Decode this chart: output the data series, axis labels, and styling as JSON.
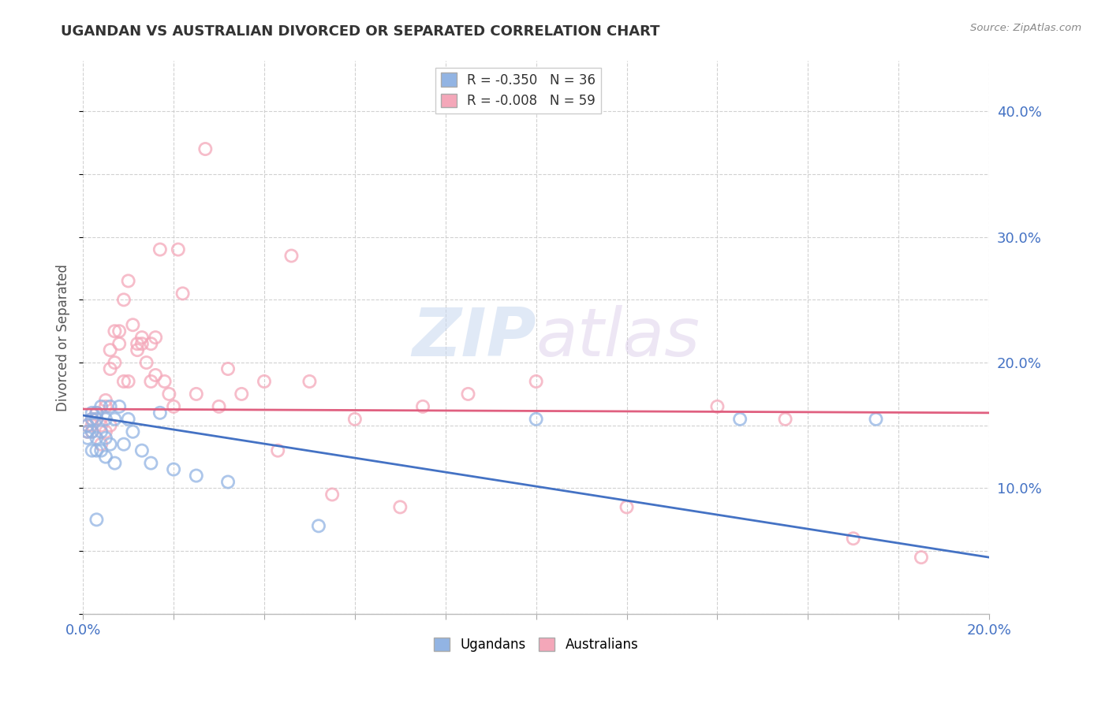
{
  "title": "UGANDAN VS AUSTRALIAN DIVORCED OR SEPARATED CORRELATION CHART",
  "source": "Source: ZipAtlas.com",
  "ylabel": "Divorced or Separated",
  "xlim": [
    0.0,
    0.2
  ],
  "ylim": [
    0.0,
    0.44
  ],
  "x_ticks": [
    0.0,
    0.02,
    0.04,
    0.06,
    0.08,
    0.1,
    0.12,
    0.14,
    0.16,
    0.18,
    0.2
  ],
  "y_ticks_right": [
    0.1,
    0.2,
    0.3,
    0.4
  ],
  "y_tick_labels_right": [
    "10.0%",
    "20.0%",
    "30.0%",
    "40.0%"
  ],
  "legend_r_ugandan": "-0.350",
  "legend_n_ugandan": "36",
  "legend_r_australian": "-0.008",
  "legend_n_australian": "59",
  "ugandan_color": "#92B4E3",
  "australian_color": "#F4A7B9",
  "ugandan_line_color": "#4472C4",
  "australian_line_color": "#E06080",
  "watermark_zip": "ZIP",
  "watermark_atlas": "atlas",
  "ugandan_scatter_x": [
    0.001,
    0.001,
    0.001,
    0.002,
    0.002,
    0.002,
    0.002,
    0.003,
    0.003,
    0.003,
    0.003,
    0.004,
    0.004,
    0.004,
    0.005,
    0.005,
    0.005,
    0.006,
    0.006,
    0.007,
    0.007,
    0.008,
    0.009,
    0.01,
    0.011,
    0.013,
    0.015,
    0.017,
    0.02,
    0.025,
    0.032,
    0.052,
    0.1,
    0.145,
    0.175,
    0.003
  ],
  "ugandan_scatter_y": [
    0.15,
    0.145,
    0.14,
    0.16,
    0.145,
    0.13,
    0.155,
    0.155,
    0.14,
    0.13,
    0.16,
    0.145,
    0.13,
    0.165,
    0.14,
    0.155,
    0.125,
    0.165,
    0.135,
    0.155,
    0.12,
    0.165,
    0.135,
    0.155,
    0.145,
    0.13,
    0.12,
    0.16,
    0.115,
    0.11,
    0.105,
    0.07,
    0.155,
    0.155,
    0.155,
    0.075
  ],
  "australian_scatter_x": [
    0.001,
    0.001,
    0.002,
    0.002,
    0.002,
    0.003,
    0.003,
    0.004,
    0.004,
    0.005,
    0.005,
    0.005,
    0.006,
    0.006,
    0.006,
    0.007,
    0.007,
    0.008,
    0.008,
    0.009,
    0.009,
    0.01,
    0.01,
    0.011,
    0.012,
    0.012,
    0.013,
    0.013,
    0.014,
    0.015,
    0.015,
    0.016,
    0.016,
    0.017,
    0.018,
    0.019,
    0.02,
    0.021,
    0.022,
    0.025,
    0.027,
    0.03,
    0.032,
    0.035,
    0.04,
    0.043,
    0.046,
    0.05,
    0.055,
    0.06,
    0.07,
    0.075,
    0.085,
    0.1,
    0.12,
    0.14,
    0.155,
    0.17,
    0.185
  ],
  "australian_scatter_y": [
    0.15,
    0.145,
    0.145,
    0.15,
    0.155,
    0.155,
    0.16,
    0.135,
    0.15,
    0.145,
    0.165,
    0.17,
    0.15,
    0.195,
    0.21,
    0.2,
    0.225,
    0.215,
    0.225,
    0.185,
    0.25,
    0.265,
    0.185,
    0.23,
    0.21,
    0.215,
    0.215,
    0.22,
    0.2,
    0.185,
    0.215,
    0.22,
    0.19,
    0.29,
    0.185,
    0.175,
    0.165,
    0.29,
    0.255,
    0.175,
    0.37,
    0.165,
    0.195,
    0.175,
    0.185,
    0.13,
    0.285,
    0.185,
    0.095,
    0.155,
    0.085,
    0.165,
    0.175,
    0.185,
    0.085,
    0.165,
    0.155,
    0.06,
    0.045
  ],
  "ugandan_trend_x": [
    0.0,
    0.2
  ],
  "ugandan_trend_y": [
    0.158,
    0.045
  ],
  "australian_trend_x": [
    0.0,
    0.2
  ],
  "australian_trend_y": [
    0.163,
    0.16
  ]
}
